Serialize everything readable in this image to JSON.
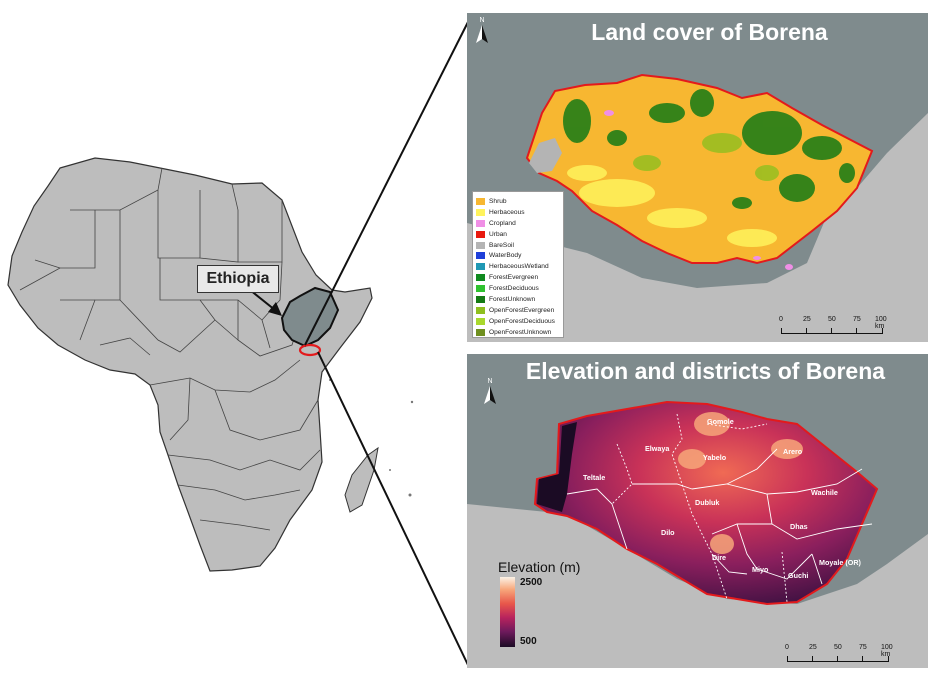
{
  "main_map": {
    "callout_label": "Ethiopia"
  },
  "land_cover_panel": {
    "title": "Land cover of Borena",
    "north_letter": "N",
    "legend": [
      {
        "label": "Shrub",
        "color": "#f7b731"
      },
      {
        "label": "Herbaceous",
        "color": "#fff35c"
      },
      {
        "label": "Cropland",
        "color": "#f08fe6"
      },
      {
        "label": "Urban",
        "color": "#e8190e"
      },
      {
        "label": "BareSoil",
        "color": "#b4b4b4"
      },
      {
        "label": "WaterBody",
        "color": "#1e3fd9"
      },
      {
        "label": "HerbaceousWetland",
        "color": "#1f98b4"
      },
      {
        "label": "ForestEvergreen",
        "color": "#0f8a1f"
      },
      {
        "label": "ForestDeciduous",
        "color": "#2fc22f"
      },
      {
        "label": "ForestUnknown",
        "color": "#157a15"
      },
      {
        "label": "OpenForestEvergreen",
        "color": "#8fbf1f"
      },
      {
        "label": "OpenForestDeciduous",
        "color": "#a9d82d"
      },
      {
        "label": "OpenForestUnknown",
        "color": "#6f8f1f"
      }
    ],
    "scale": [
      "0",
      "25",
      "50",
      "75",
      "100 km"
    ]
  },
  "elevation_panel": {
    "title": "Elevation and districts of Borena",
    "north_letter": "N",
    "legend_title": "Elevation (m)",
    "legend_max": "2500",
    "legend_min": "500",
    "districts": [
      "Gomole",
      "Elwaya",
      "Yabelo",
      "Arero",
      "Teltale",
      "Wachile",
      "Dubluk",
      "Dhas",
      "Dilo",
      "Dire",
      "Miyo",
      "Moyale (OR)",
      "Guchi"
    ],
    "scale": [
      "0",
      "25",
      "50",
      "75",
      "100 km"
    ]
  },
  "colors": {
    "land_gray": "#bdbdbd",
    "sea_panel": "#7f8b8d",
    "study_area_outline": "#e31a1c"
  }
}
